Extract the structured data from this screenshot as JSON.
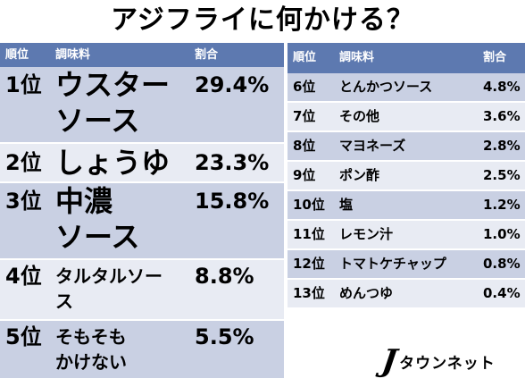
{
  "title": "アジフライに何かける？",
  "left_table": {
    "headers": [
      "順位",
      "調味料",
      "割合"
    ],
    "rows": [
      {
        "rank": "1位",
        "name_lines": [
          "ウスター",
          "ソース"
        ],
        "pct": "29.4%"
      },
      {
        "rank": "2位",
        "name_lines": [
          "しょうゆ"
        ],
        "pct": "23.3%"
      },
      {
        "rank": "3位",
        "name_lines": [
          "中濃",
          "ソース"
        ],
        "pct": "15.8%"
      },
      {
        "rank": "4位",
        "name_lines": [
          "タルタルソー",
          "ス"
        ],
        "pct": "8.8%"
      },
      {
        "rank": "5位",
        "name_lines": [
          "そもそも",
          "かけない"
        ],
        "pct": "5.5%"
      }
    ]
  },
  "right_table": {
    "headers": [
      "順位",
      "調味料",
      "割合"
    ],
    "rows": [
      {
        "rank": "6位",
        "name": "とんかつソース",
        "pct": "4.8%"
      },
      {
        "rank": "7位",
        "name": "その他",
        "pct": "3.6%"
      },
      {
        "rank": "8位",
        "name": "マヨネーズ",
        "pct": "2.8%"
      },
      {
        "rank": "9位",
        "name": "ポン酢",
        "pct": "2.5%"
      },
      {
        "rank": "10位",
        "name": "塩",
        "pct": "1.2%"
      },
      {
        "rank": "11位",
        "name": "レモン汁",
        "pct": "1.0%"
      },
      {
        "rank": "12位",
        "name": "トマトケチャップ",
        "pct": "0.8%"
      },
      {
        "rank": "13位",
        "name": "めんつゆ",
        "pct": "0.4%"
      }
    ]
  },
  "logo": {
    "mark": "J",
    "text": "タウンネット"
  },
  "colors": {
    "header": "#5d79b0",
    "row_dark": "#c9d0e3",
    "row_light": "#e8ebf3"
  }
}
